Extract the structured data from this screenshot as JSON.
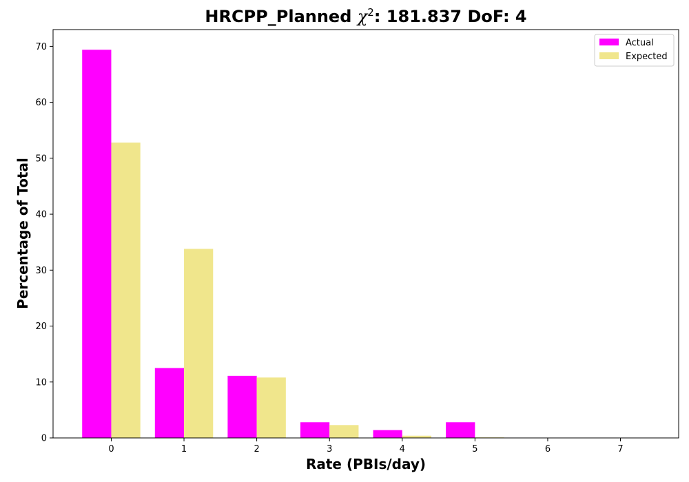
{
  "chart_data": {
    "type": "bar",
    "title_prefix": "HRCPP_Planned ",
    "title_symbol": "χ",
    "title_superscript": "2",
    "title_suffix": ": 181.837 DoF: 4",
    "xlabel": "Rate (PBIs/day)",
    "ylabel": "Percentage of Total",
    "categories": [
      "0",
      "1",
      "2",
      "3",
      "4",
      "5",
      "6",
      "7"
    ],
    "ylim": [
      0,
      73
    ],
    "yticks": [
      0,
      10,
      20,
      30,
      40,
      50,
      60,
      70
    ],
    "legend_position": "top-right",
    "grid": false,
    "series": [
      {
        "name": "Actual",
        "color": "#ff00ff",
        "values": [
          69.4,
          12.5,
          11.1,
          2.8,
          1.4,
          2.8,
          0,
          0
        ]
      },
      {
        "name": "Expected",
        "color": "#f0e68c",
        "values": [
          52.8,
          33.8,
          10.8,
          2.3,
          0.4,
          0.1,
          0,
          0
        ]
      }
    ]
  }
}
